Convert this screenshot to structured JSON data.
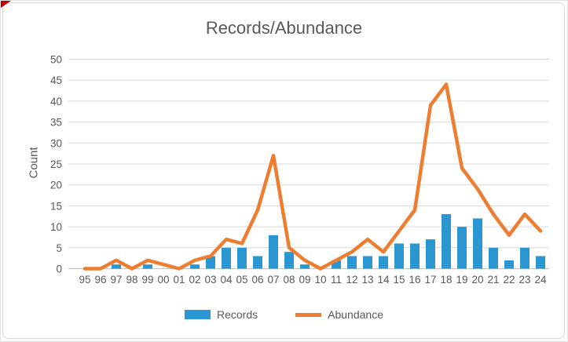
{
  "window": {
    "corner_marker_color": "#c00000"
  },
  "chart_data": {
    "type": "combo",
    "title": "Records/Abundance",
    "ylabel": "Count",
    "xlabel": "",
    "categories": [
      "95",
      "96",
      "97",
      "98",
      "99",
      "00",
      "01",
      "02",
      "03",
      "04",
      "05",
      "06",
      "07",
      "08",
      "09",
      "10",
      "11",
      "12",
      "13",
      "14",
      "15",
      "16",
      "17",
      "18",
      "19",
      "20",
      "21",
      "22",
      "23",
      "24"
    ],
    "series": [
      {
        "name": "Records",
        "type": "bar",
        "color": "#2a96d2",
        "values": [
          0,
          0,
          1,
          0,
          1,
          0,
          0,
          1,
          3,
          5,
          5,
          3,
          8,
          4,
          1,
          0,
          2,
          3,
          3,
          3,
          6,
          6,
          7,
          13,
          10,
          12,
          5,
          2,
          5,
          3
        ]
      },
      {
        "name": "Abundance",
        "type": "line",
        "color": "#ed7d31",
        "values": [
          0,
          0,
          2,
          0,
          2,
          1,
          0,
          2,
          3,
          7,
          6,
          14,
          27,
          5,
          2,
          0,
          2,
          4,
          7,
          4,
          9,
          14,
          39,
          44,
          24,
          19,
          13,
          8,
          13,
          9
        ]
      }
    ],
    "ylim": [
      0,
      50
    ],
    "yticks": [
      0,
      5,
      10,
      15,
      20,
      25,
      30,
      35,
      40,
      45,
      50
    ],
    "grid": true,
    "legend_position": "bottom",
    "text_color": "#595959",
    "gridline_color": "#d9d9d9",
    "axis_line_color": "#c0c0c0"
  }
}
